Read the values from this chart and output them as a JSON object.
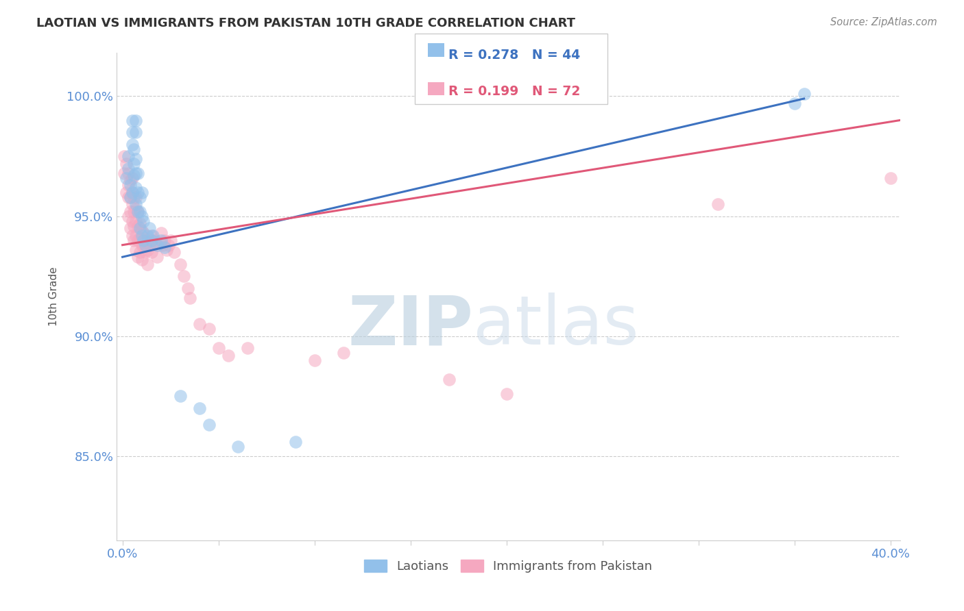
{
  "title": "LAOTIAN VS IMMIGRANTS FROM PAKISTAN 10TH GRADE CORRELATION CHART",
  "source": "Source: ZipAtlas.com",
  "ylabel": "10th Grade",
  "xlim": [
    -0.003,
    0.405
  ],
  "ylim": [
    0.815,
    1.018
  ],
  "blue_R": 0.278,
  "blue_N": 44,
  "pink_R": 0.199,
  "pink_N": 72,
  "blue_label": "Laotians",
  "pink_label": "Immigrants from Pakistan",
  "blue_color": "#92C0EA",
  "pink_color": "#F5A8C0",
  "blue_line_color": "#3D72C0",
  "pink_line_color": "#E05878",
  "watermark_zip": "ZIP",
  "watermark_atlas": "atlas",
  "y_tick_positions": [
    0.85,
    0.9,
    0.95,
    1.0
  ],
  "y_tick_labels": [
    "85.0%",
    "90.0%",
    "95.0%",
    "100.0%"
  ],
  "x_tick_positions": [
    0.0,
    0.4
  ],
  "x_tick_labels": [
    "0.0%",
    "40.0%"
  ],
  "blue_trend_x": [
    0.0,
    0.355
  ],
  "blue_trend_y": [
    0.933,
    0.999
  ],
  "pink_trend_x": [
    0.0,
    0.405
  ],
  "pink_trend_y": [
    0.938,
    0.99
  ],
  "blue_scatter_x": [
    0.002,
    0.003,
    0.003,
    0.004,
    0.004,
    0.005,
    0.005,
    0.005,
    0.005,
    0.006,
    0.006,
    0.006,
    0.007,
    0.007,
    0.007,
    0.007,
    0.007,
    0.007,
    0.008,
    0.008,
    0.008,
    0.009,
    0.009,
    0.009,
    0.01,
    0.01,
    0.01,
    0.011,
    0.011,
    0.012,
    0.013,
    0.014,
    0.015,
    0.016,
    0.018,
    0.02,
    0.022,
    0.03,
    0.04,
    0.045,
    0.06,
    0.09,
    0.35,
    0.355
  ],
  "blue_scatter_y": [
    0.966,
    0.97,
    0.975,
    0.958,
    0.963,
    0.98,
    0.985,
    0.99,
    0.96,
    0.967,
    0.972,
    0.978,
    0.955,
    0.962,
    0.968,
    0.974,
    0.985,
    0.99,
    0.952,
    0.96,
    0.968,
    0.945,
    0.952,
    0.958,
    0.942,
    0.95,
    0.96,
    0.94,
    0.948,
    0.938,
    0.942,
    0.945,
    0.94,
    0.942,
    0.938,
    0.94,
    0.937,
    0.875,
    0.87,
    0.863,
    0.854,
    0.856,
    0.997,
    1.001
  ],
  "pink_scatter_x": [
    0.001,
    0.001,
    0.002,
    0.002,
    0.003,
    0.003,
    0.003,
    0.003,
    0.004,
    0.004,
    0.004,
    0.004,
    0.005,
    0.005,
    0.005,
    0.005,
    0.005,
    0.006,
    0.006,
    0.006,
    0.006,
    0.007,
    0.007,
    0.007,
    0.007,
    0.007,
    0.008,
    0.008,
    0.008,
    0.008,
    0.009,
    0.009,
    0.009,
    0.01,
    0.01,
    0.01,
    0.011,
    0.011,
    0.012,
    0.012,
    0.013,
    0.013,
    0.014,
    0.015,
    0.015,
    0.015,
    0.016,
    0.017,
    0.018,
    0.019,
    0.02,
    0.021,
    0.022,
    0.023,
    0.024,
    0.025,
    0.027,
    0.03,
    0.032,
    0.034,
    0.035,
    0.04,
    0.045,
    0.05,
    0.055,
    0.065,
    0.1,
    0.115,
    0.17,
    0.2,
    0.31,
    0.4
  ],
  "pink_scatter_y": [
    0.968,
    0.975,
    0.96,
    0.972,
    0.95,
    0.958,
    0.963,
    0.968,
    0.945,
    0.952,
    0.958,
    0.965,
    0.942,
    0.948,
    0.955,
    0.96,
    0.966,
    0.94,
    0.946,
    0.952,
    0.958,
    0.936,
    0.942,
    0.948,
    0.953,
    0.958,
    0.933,
    0.94,
    0.946,
    0.952,
    0.935,
    0.941,
    0.947,
    0.932,
    0.938,
    0.944,
    0.938,
    0.943,
    0.935,
    0.94,
    0.93,
    0.936,
    0.938,
    0.942,
    0.935,
    0.94,
    0.938,
    0.94,
    0.933,
    0.938,
    0.943,
    0.938,
    0.94,
    0.936,
    0.938,
    0.94,
    0.935,
    0.93,
    0.925,
    0.92,
    0.916,
    0.905,
    0.903,
    0.895,
    0.892,
    0.895,
    0.89,
    0.893,
    0.882,
    0.876,
    0.955,
    0.966
  ]
}
